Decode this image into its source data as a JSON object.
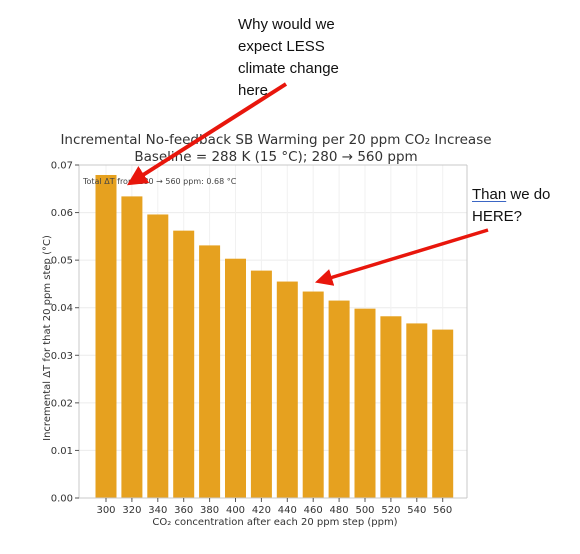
{
  "annotations": {
    "callout_1": {
      "lines": [
        "Why would we",
        "expect LESS",
        "climate change",
        "here"
      ]
    },
    "callout_2": {
      "underlined": "Than",
      "rest": " we do",
      "line2": "HERE?"
    },
    "arrow_color": "#e8160c"
  },
  "chart_data": {
    "type": "bar",
    "title": "Incremental No-feedback SB Warming per 20 ppm CO₂ Increase",
    "subtitle": "Baseline = 288 K (15 °C); 280 → 560 ppm",
    "xlabel": "CO₂ concentration after each 20 ppm step (ppm)",
    "ylabel": "Incremental ΔT for that 20 ppm step (°C)",
    "inset_text": "Total ΔT from 280 → 560 ppm: 0.68 °C",
    "categories": [
      "300",
      "320",
      "340",
      "360",
      "380",
      "400",
      "420",
      "440",
      "460",
      "480",
      "500",
      "520",
      "540",
      "560"
    ],
    "values": [
      0.0679,
      0.0634,
      0.0596,
      0.0562,
      0.0531,
      0.0503,
      0.0478,
      0.0455,
      0.0434,
      0.0415,
      0.0398,
      0.0382,
      0.0367,
      0.0354
    ],
    "ylim": [
      0,
      0.07
    ],
    "yticks": [
      0.0,
      0.01,
      0.02,
      0.03,
      0.04,
      0.05,
      0.06,
      0.07
    ],
    "ytick_labels": [
      "0.00",
      "0.01",
      "0.02",
      "0.03",
      "0.04",
      "0.05",
      "0.06",
      "0.07"
    ],
    "grid": true,
    "bar_color": "#e6a11f"
  }
}
